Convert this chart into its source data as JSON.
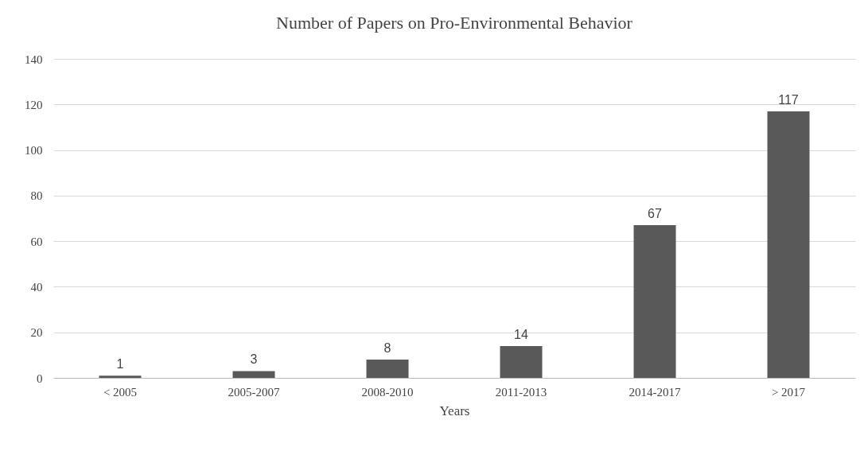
{
  "chart_data": {
    "type": "bar",
    "title": "Number of Papers on Pro-Environmental Behavior",
    "xlabel": "Years",
    "categories": [
      "< 2005",
      "2005-2007",
      "2008-2010",
      "2011-2013",
      "2014-2017",
      "> 2017"
    ],
    "values": [
      1,
      3,
      8,
      14,
      67,
      117
    ],
    "color": "#595959",
    "ylim": [
      0,
      140
    ],
    "yticks": [
      0,
      20,
      40,
      60,
      80,
      100,
      120,
      140
    ],
    "grid": "y",
    "data_labels": true
  }
}
